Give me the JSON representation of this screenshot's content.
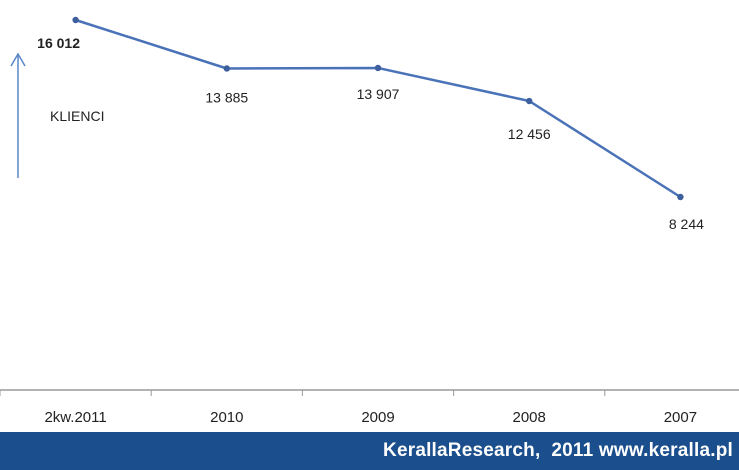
{
  "chart_data": {
    "type": "line",
    "categories": [
      "2kw.2011",
      "2010",
      "2009",
      "2008",
      "2007"
    ],
    "values": [
      16012,
      13885,
      13907,
      12456,
      8244
    ],
    "value_labels": [
      "16 012",
      "13 885",
      "13 907",
      "12 456",
      "8 244"
    ],
    "ylabel": "KLIENCI",
    "ylim": [
      0,
      16500
    ],
    "grid": false,
    "legend": "none",
    "line_color": "#4a72b8",
    "marker_color": "#3d5f9e",
    "axis_color": "#9a9a9a",
    "arrow_color": "#5a86c8"
  },
  "footer": {
    "text": "KerallaResearch,  2011 www.keralla.pl",
    "background": "#1b4e8c"
  }
}
